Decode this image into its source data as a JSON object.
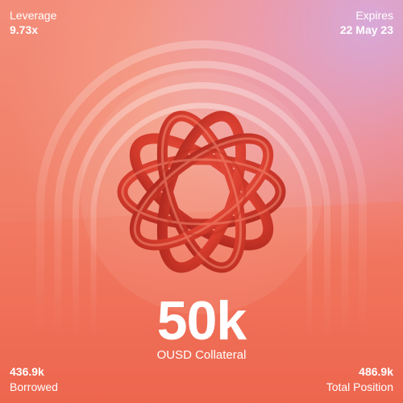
{
  "leverage": {
    "label": "Leverage",
    "value": "9.73x"
  },
  "expires": {
    "label": "Expires",
    "value": "22 May 23"
  },
  "collateral": {
    "value": "50k",
    "label": "OUSD Collateral"
  },
  "borrowed": {
    "value": "436.9k",
    "label": "Borrowed"
  },
  "total_position": {
    "value": "486.9k",
    "label": "Total Position"
  },
  "colors": {
    "background": "#f07a5e",
    "accent_purple": "#d6aade",
    "knot_red": "#e2412f",
    "text": "#ffffff"
  },
  "icons": {
    "center_graphic": "twisted-torus-knot-icon"
  }
}
